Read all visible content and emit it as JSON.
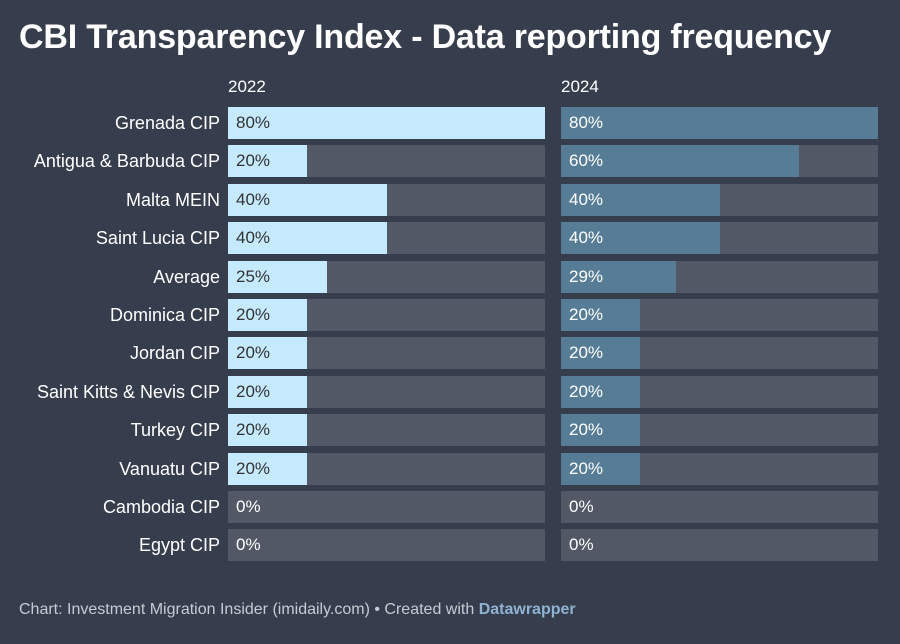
{
  "title": "CBI Transparency Index - Data reporting frequency",
  "footer": {
    "source": "Chart: Investment Migration Insider (imidaily.com) • Created with ",
    "tool": "Datawrapper"
  },
  "colors": {
    "background": "#363d4d",
    "track": "#535866",
    "bar_2022": "#c5e9fd",
    "bar_2024": "#577d96",
    "text_2022": "#333333",
    "text_2024": "#ffffff"
  },
  "chart_data": {
    "type": "bar",
    "orientation": "horizontal",
    "title": "CBI Transparency Index - Data reporting frequency",
    "categories": [
      "Grenada CIP",
      "Antigua & Barbuda CIP",
      "Malta MEIN",
      "Saint Lucia CIP",
      "Average",
      "Dominica CIP",
      "Jordan CIP",
      "Saint Kitts & Nevis CIP",
      "Turkey CIP",
      "Vanuatu CIP",
      "Cambodia CIP",
      "Egypt CIP"
    ],
    "series": [
      {
        "name": "2022",
        "values": [
          80,
          20,
          40,
          40,
          25,
          20,
          20,
          20,
          20,
          20,
          0,
          0
        ],
        "labels": [
          "80%",
          "20%",
          "40%",
          "40%",
          "25%",
          "20%",
          "20%",
          "20%",
          "20%",
          "20%",
          "0%",
          "0%"
        ]
      },
      {
        "name": "2024",
        "values": [
          80,
          60,
          40,
          40,
          29,
          20,
          20,
          20,
          20,
          20,
          0,
          0
        ],
        "labels": [
          "80%",
          "60%",
          "40%",
          "40%",
          "29%",
          "20%",
          "20%",
          "20%",
          "20%",
          "20%",
          "0%",
          "0%"
        ]
      }
    ],
    "xlim": [
      0,
      80
    ],
    "unit": "%"
  }
}
